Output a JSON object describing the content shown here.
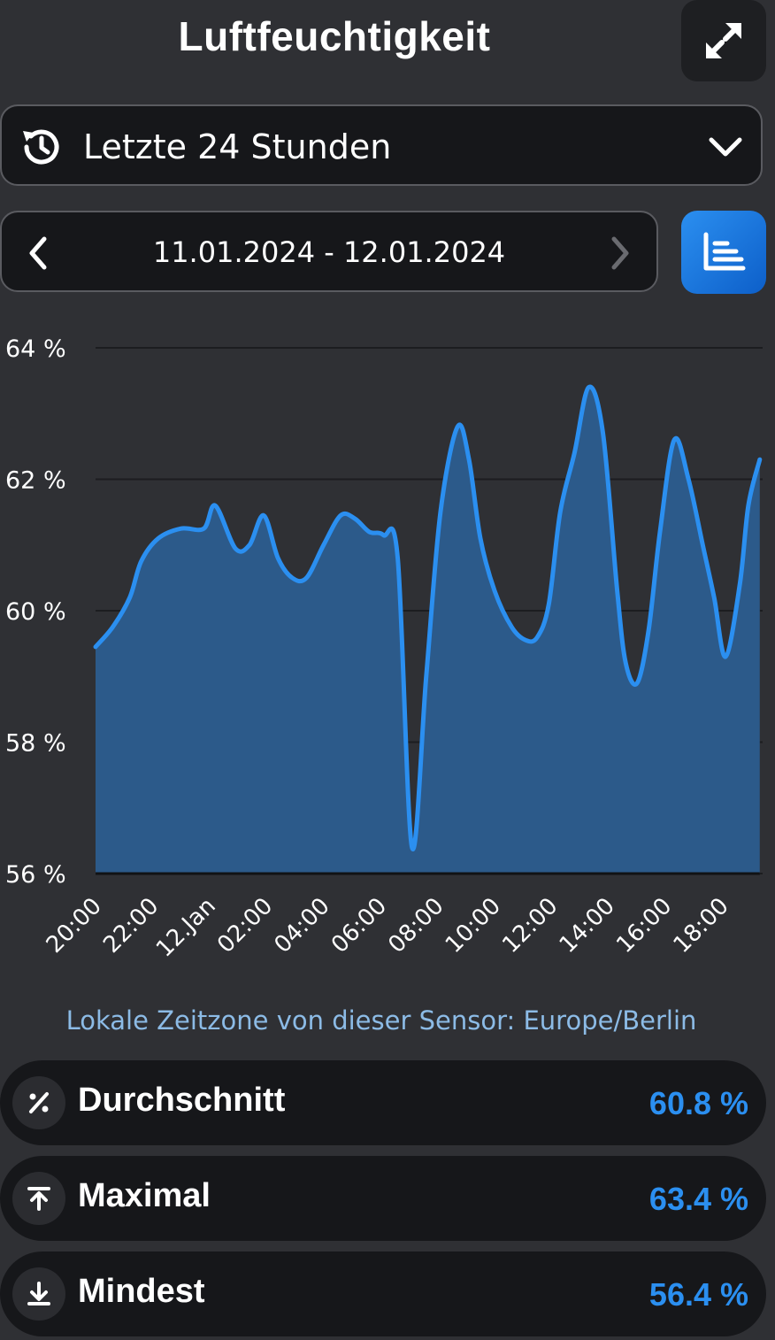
{
  "header": {
    "title": "Luftfeuchtigkeit"
  },
  "range_select": {
    "selected": "Letzte 24 Stunden"
  },
  "date_nav": {
    "range": "11.01.2024 - 12.01.2024"
  },
  "colors": {
    "accent": "#2b8ff0",
    "fill": "#2c5a8a",
    "grid": "#1c1d20"
  },
  "chart_data": {
    "type": "area",
    "y_tick_labels": [
      "64 %",
      "62 %",
      "60 %",
      "58 %",
      "56 %"
    ],
    "y_ticks": [
      64,
      62,
      60,
      58,
      56
    ],
    "ylim": [
      56,
      64
    ],
    "xlim": [
      0,
      23.4
    ],
    "x_tick_labels": [
      "20:00",
      "22:00",
      "12.Jan",
      "02:00",
      "04:00",
      "06:00",
      "08:00",
      "10:00",
      "12:00",
      "14:00",
      "16:00",
      "18:00"
    ],
    "x_ticks": [
      0,
      2,
      4,
      6,
      8,
      10,
      12,
      14,
      16,
      18,
      20,
      22
    ],
    "series": [
      {
        "x": [
          0,
          0.6,
          1.2,
          1.6,
          2.2,
          3.0,
          3.8,
          4.2,
          4.9,
          5.4,
          5.9,
          6.4,
          6.9,
          7.4,
          8.0,
          8.6,
          9.1,
          9.6,
          10.1,
          10.6,
          11.1,
          11.6,
          12.1,
          12.7,
          13.1,
          13.5,
          14.0,
          14.6,
          15.1,
          15.5,
          15.9,
          16.3,
          16.8,
          17.3,
          17.8,
          18.3,
          18.6,
          19.0,
          19.4,
          19.8,
          20.3,
          20.8,
          21.3,
          21.7,
          22.1,
          22.6,
          22.9,
          23.3
        ],
        "values": [
          59.45,
          59.75,
          60.2,
          60.75,
          61.1,
          61.25,
          61.25,
          61.6,
          60.95,
          61.0,
          61.45,
          60.8,
          60.5,
          60.5,
          61.0,
          61.45,
          61.4,
          61.2,
          61.15,
          60.8,
          56.4,
          59.0,
          61.5,
          62.8,
          62.3,
          61.1,
          60.3,
          59.75,
          59.55,
          59.6,
          60.1,
          61.5,
          62.4,
          63.4,
          62.7,
          60.3,
          59.2,
          58.9,
          59.7,
          61.2,
          62.6,
          62.0,
          61.0,
          60.2,
          59.3,
          60.4,
          61.6,
          62.3
        ]
      }
    ],
    "grid": true
  },
  "timezone_note": "Lokale Zeitzone von dieser Sensor: Europe/Berlin",
  "stats": [
    {
      "label": "Durchschnitt",
      "value": "60.8 %",
      "icon": "percent-icon"
    },
    {
      "label": "Maximal",
      "value": "63.4 %",
      "icon": "arrow-up-to-line-icon"
    },
    {
      "label": "Mindest",
      "value": "56.4 %",
      "icon": "arrow-down-to-line-icon"
    }
  ]
}
